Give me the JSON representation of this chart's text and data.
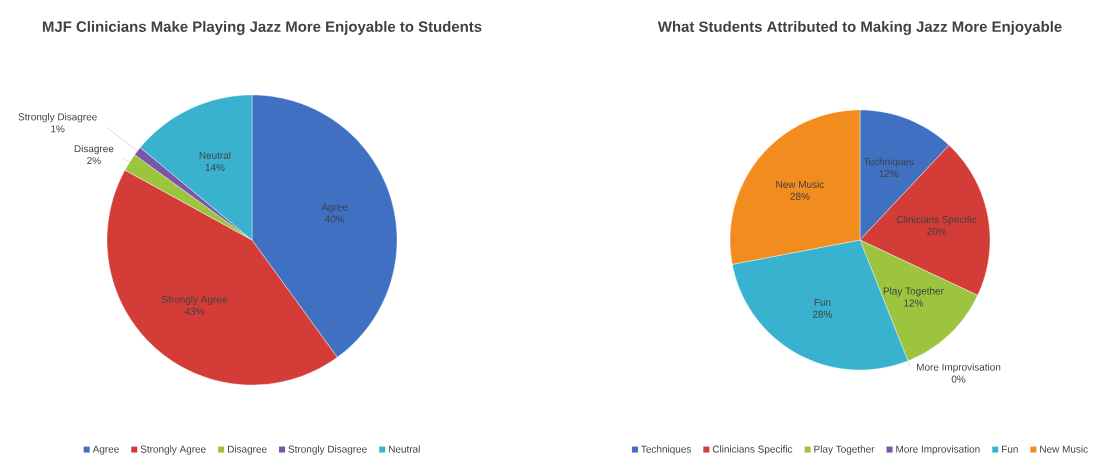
{
  "chart_data": [
    {
      "type": "pie",
      "title": "MJF Clinicians Make Playing Jazz More Enjoyable to Students",
      "categories": [
        "Agree",
        "Strongly Agree",
        "Disagree",
        "Strongly Disagree",
        "Neutral"
      ],
      "values": [
        40,
        43,
        2,
        1,
        14
      ],
      "value_labels": [
        "40%",
        "43%",
        "2%",
        "1%",
        "14%"
      ],
      "colors": [
        "#3f70c2",
        "#d43c37",
        "#9cc43f",
        "#7b55a8",
        "#39b2d0"
      ],
      "legend": "bottom"
    },
    {
      "type": "pie",
      "title": "What Students Attributed to Making Jazz More Enjoyable",
      "categories": [
        "Techniques",
        "Clinicians Specific",
        "Play Together",
        "More Improvisation",
        "Fun",
        "New Music"
      ],
      "values": [
        12,
        20,
        12,
        0,
        28,
        28
      ],
      "value_labels": [
        "12%",
        "20%",
        "12%",
        "0%",
        "28%",
        "28%"
      ],
      "colors": [
        "#3f70c2",
        "#d43c37",
        "#9cc43f",
        "#7b55a8",
        "#39b2d0",
        "#f28c1e"
      ],
      "legend": "bottom"
    }
  ]
}
